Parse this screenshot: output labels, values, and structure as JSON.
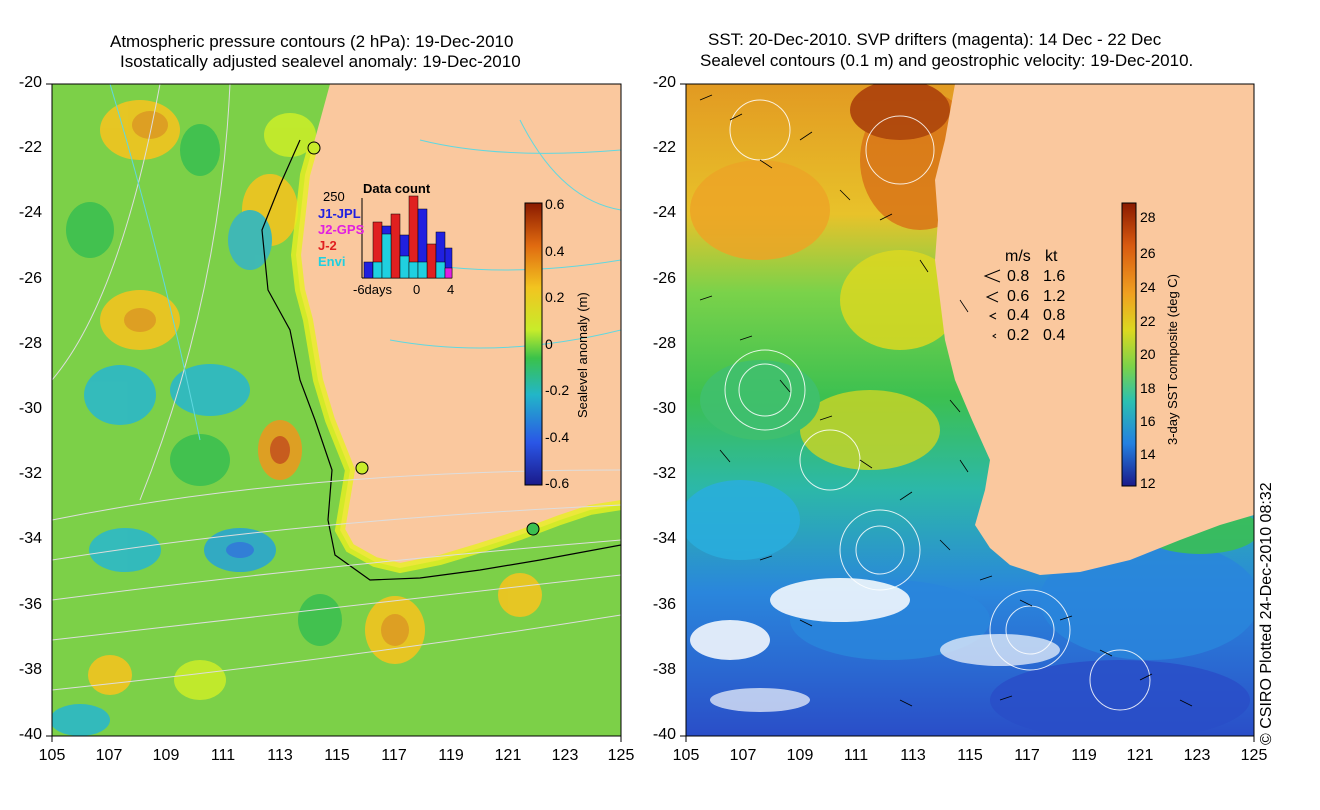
{
  "left_panel": {
    "title_line1": "Atmospheric pressure contours (2 hPa): 19-Dec-2010",
    "title_line2": "Isostatically adjusted sealevel anomaly: 19-Dec-2010",
    "y_ticks": [
      "-20",
      "-22",
      "-24",
      "-26",
      "-28",
      "-30",
      "-32",
      "-34",
      "-36",
      "-38",
      "-40"
    ],
    "x_ticks": [
      "105",
      "107",
      "109",
      "111",
      "113",
      "115",
      "117",
      "119",
      "121",
      "123",
      "125"
    ],
    "colorbar": {
      "label": "Sealevel anomaly (m)",
      "ticks": [
        "0.6",
        "0.4",
        "0.2",
        "0",
        "-0.2",
        "-0.4",
        "-0.6"
      ]
    },
    "inset": {
      "title": "Data count",
      "ymax_label": "250",
      "x_labels": [
        "-6days",
        "0",
        "4"
      ],
      "legend": [
        {
          "name": "J1-JPL",
          "color": "#2020e0"
        },
        {
          "name": "J2-GPS",
          "color": "#e020e0"
        },
        {
          "name": "J-2",
          "color": "#e02020"
        },
        {
          "name": "Envi",
          "color": "#20d0e0"
        }
      ]
    }
  },
  "right_panel": {
    "title_line1": "SST: 20-Dec-2010. SVP drifters (magenta): 14 Dec - 22 Dec",
    "title_line2": "Sealevel contours (0.1 m) and geostrophic velocity: 19-Dec-2010.",
    "y_ticks": [
      "-20",
      "-22",
      "-24",
      "-26",
      "-28",
      "-30",
      "-32",
      "-34",
      "-36",
      "-38",
      "-40"
    ],
    "x_ticks": [
      "105",
      "107",
      "109",
      "111",
      "113",
      "115",
      "117",
      "119",
      "121",
      "123",
      "125"
    ],
    "colorbar": {
      "label": "3-day SST composite (deg C)",
      "ticks": [
        "28",
        "26",
        "24",
        "22",
        "20",
        "18",
        "16",
        "14",
        "12"
      ]
    },
    "velocity_legend": {
      "header_ms": "m/s",
      "header_kt": "kt",
      "rows": [
        {
          "ms": "0.8",
          "kt": "1.6"
        },
        {
          "ms": "0.6",
          "kt": "1.2"
        },
        {
          "ms": "0.4",
          "kt": "0.8"
        },
        {
          "ms": "0.2",
          "kt": "0.4"
        }
      ]
    }
  },
  "credit": "© CSIRO Plotted 24-Dec-2010 08:32",
  "colors": {
    "land": "#fac89e",
    "sla_gradient": [
      "#8a1a00",
      "#e06a10",
      "#f2c420",
      "#c8ec2a",
      "#3ac24a",
      "#22b6c8",
      "#2a56e6",
      "#1a1a8a"
    ],
    "sst_gradient": [
      "#8a1a00",
      "#d85a10",
      "#f0a020",
      "#dcd820",
      "#7ad24a",
      "#2cc0b0",
      "#2480e0",
      "#1a1a8a"
    ]
  }
}
